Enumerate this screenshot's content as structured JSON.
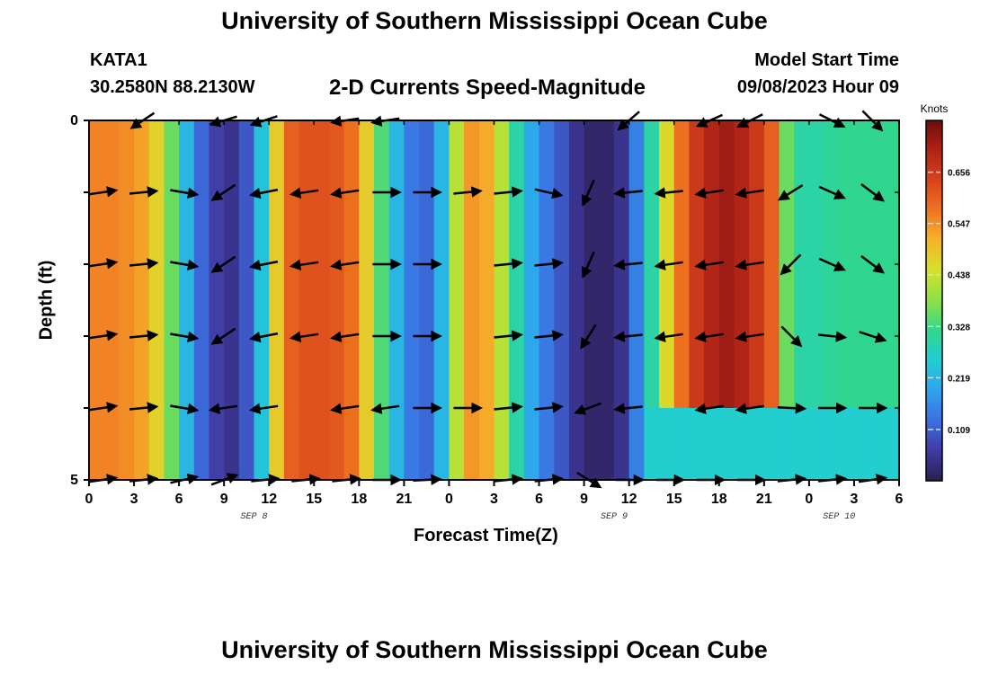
{
  "page": {
    "title": "University of Southern Mississippi Ocean Cube",
    "station": "KATA1",
    "coords": "30.2580N  88.2130W",
    "subtitle": "2-D Currents Speed-Magnitude",
    "model_start_label": "Model Start Time",
    "model_start_value": "09/08/2023 Hour 09",
    "repeat_title": "University of Southern Mississippi Ocean Cube"
  },
  "chart_data": {
    "type": "heatmap",
    "title": "2-D Currents Speed-Magnitude",
    "xlabel": "Forecast Time(Z)",
    "ylabel": "Depth (ft)",
    "x_tick_labels": [
      "0",
      "3",
      "6",
      "9",
      "12",
      "15",
      "18",
      "21",
      "0",
      "3",
      "6",
      "9",
      "12",
      "15",
      "18",
      "21",
      "0",
      "3",
      "6"
    ],
    "x_hours_range": [
      0,
      54
    ],
    "date_labels": [
      {
        "text": "SEP 8",
        "hour": 11
      },
      {
        "text": "SEP 9",
        "hour": 35
      },
      {
        "text": "SEP 10",
        "hour": 50
      }
    ],
    "y_tick_labels": [
      "0",
      "5"
    ],
    "ylim": [
      0,
      5
    ],
    "colorbar": {
      "title": "Knots",
      "ticks": [
        0.109,
        0.219,
        0.328,
        0.438,
        0.547,
        0.656
      ],
      "range": [
        0.0,
        0.766
      ],
      "colors": [
        "#2a1f52",
        "#3f3aa0",
        "#3c6fe0",
        "#2fa3ee",
        "#22cdd4",
        "#30d68f",
        "#8ee045",
        "#d4e12c",
        "#f6b52a",
        "#ef7422",
        "#d8441c",
        "#b02317",
        "#6e0c0c"
      ]
    },
    "depth_levels": [
      0.5,
      1.5,
      2.5,
      3.5,
      4.5
    ],
    "surface_speed_by_hour": [
      0.56,
      0.56,
      0.55,
      0.53,
      0.47,
      0.36,
      0.22,
      0.12,
      0.07,
      0.05,
      0.1,
      0.24,
      0.48,
      0.6,
      0.62,
      0.62,
      0.61,
      0.58,
      0.48,
      0.34,
      0.22,
      0.14,
      0.12,
      0.22,
      0.42,
      0.54,
      0.52,
      0.42,
      0.3,
      0.2,
      0.14,
      0.1,
      0.05,
      0.02,
      0.02,
      0.05,
      0.15,
      0.3,
      0.46,
      0.58,
      0.66,
      0.7,
      0.72,
      0.7,
      0.66,
      0.6,
      0.36,
      0.3,
      0.3,
      0.31,
      0.32,
      0.32,
      0.32,
      0.32,
      0.32
    ],
    "arrow_rows": [
      {
        "depth": 0.0,
        "u_v": [
          [
            0.0,
            0.0
          ],
          [
            -0.6,
            0.4
          ],
          [
            -1.0,
            0.3
          ],
          [
            -0.9,
            0.3
          ],
          [
            -1.0,
            0.15
          ],
          [
            -1.0,
            0.15
          ],
          [
            0.0,
            0.0
          ],
          [
            0.0,
            0.0
          ],
          [
            0.0,
            0.0
          ],
          [
            -0.7,
            0.6
          ],
          [
            -0.9,
            0.4
          ],
          [
            -0.8,
            0.4
          ],
          [
            0.8,
            0.4
          ],
          [
            0.7,
            0.7
          ]
        ]
      },
      {
        "depth": 1.0,
        "u_v": [
          [
            1.0,
            -0.15
          ],
          [
            1.0,
            -0.1
          ],
          [
            0.9,
            0.15
          ],
          [
            -0.6,
            0.4
          ],
          [
            -1.0,
            0.2
          ],
          [
            -1.0,
            0.15
          ],
          [
            -1.0,
            0.15
          ],
          [
            1.0,
            0.0
          ],
          [
            1.0,
            0.0
          ],
          [
            1.0,
            -0.1
          ],
          [
            1.0,
            -0.1
          ],
          [
            0.9,
            0.2
          ],
          [
            -0.4,
            0.9
          ],
          [
            -1.0,
            0.1
          ],
          [
            -1.0,
            0.1
          ],
          [
            -1.0,
            0.15
          ],
          [
            -1.0,
            0.15
          ],
          [
            -0.8,
            0.5
          ],
          [
            0.9,
            0.4
          ],
          [
            0.8,
            0.6
          ]
        ]
      },
      {
        "depth": 2.0,
        "u_v": [
          [
            1.0,
            -0.15
          ],
          [
            1.0,
            -0.1
          ],
          [
            0.9,
            0.15
          ],
          [
            -0.6,
            0.4
          ],
          [
            -1.0,
            0.2
          ],
          [
            -1.0,
            0.15
          ],
          [
            -1.0,
            0.15
          ],
          [
            1.0,
            0.0
          ],
          [
            1.0,
            0.0
          ],
          [
            1.0,
            -0.1
          ],
          [
            1.0,
            -0.1
          ],
          [
            -0.4,
            0.9
          ],
          [
            -1.0,
            0.1
          ],
          [
            -1.0,
            0.15
          ],
          [
            -1.0,
            0.15
          ],
          [
            -1.0,
            0.15
          ],
          [
            -0.7,
            0.7
          ],
          [
            0.9,
            0.4
          ],
          [
            0.8,
            0.6
          ]
        ]
      },
      {
        "depth": 3.0,
        "u_v": [
          [
            1.0,
            -0.15
          ],
          [
            1.0,
            -0.1
          ],
          [
            0.9,
            0.15
          ],
          [
            -0.6,
            0.4
          ],
          [
            -1.0,
            0.2
          ],
          [
            -1.0,
            0.15
          ],
          [
            -1.0,
            0.15
          ],
          [
            1.0,
            0.0
          ],
          [
            1.0,
            0.0
          ],
          [
            1.0,
            -0.1
          ],
          [
            1.0,
            -0.1
          ],
          [
            -0.5,
            0.8
          ],
          [
            -1.0,
            0.1
          ],
          [
            -1.0,
            0.15
          ],
          [
            -1.0,
            0.15
          ],
          [
            -1.0,
            0.15
          ],
          [
            0.7,
            0.7
          ],
          [
            1.0,
            0.1
          ],
          [
            0.9,
            0.3
          ]
        ]
      },
      {
        "depth": 4.0,
        "u_v": [
          [
            1.0,
            -0.15
          ],
          [
            1.0,
            -0.1
          ],
          [
            0.9,
            0.15
          ],
          [
            -1.0,
            0.15
          ],
          [
            -1.0,
            0.15
          ],
          [
            -1.0,
            0.15
          ],
          [
            -1.0,
            0.15
          ],
          [
            1.0,
            0.0
          ],
          [
            1.0,
            0.0
          ],
          [
            1.0,
            -0.1
          ],
          [
            1.0,
            -0.1
          ],
          [
            -0.8,
            0.3
          ],
          [
            -1.0,
            0.1
          ],
          [
            -1.0,
            0.15
          ],
          [
            -1.0,
            0.15
          ],
          [
            1.0,
            0.05
          ],
          [
            1.0,
            0.0
          ],
          [
            1.0,
            0.0
          ]
        ]
      },
      {
        "depth": 5.0,
        "u_v": [
          [
            1.0,
            -0.15
          ],
          [
            1.0,
            -0.1
          ],
          [
            0.9,
            -0.2
          ],
          [
            0.8,
            -0.3
          ],
          [
            1.0,
            -0.1
          ],
          [
            1.0,
            -0.1
          ],
          [
            1.0,
            -0.1
          ],
          [
            1.0,
            0.0
          ],
          [
            1.0,
            -0.05
          ],
          [
            1.0,
            -0.1
          ],
          [
            1.0,
            -0.1
          ],
          [
            0.8,
            0.5
          ],
          [
            1.0,
            0.0
          ],
          [
            1.0,
            0.0
          ],
          [
            1.0,
            0.0
          ],
          [
            1.0,
            0.0
          ],
          [
            1.0,
            -0.1
          ],
          [
            1.0,
            -0.1
          ],
          [
            1.0,
            -0.15
          ]
        ]
      }
    ]
  }
}
